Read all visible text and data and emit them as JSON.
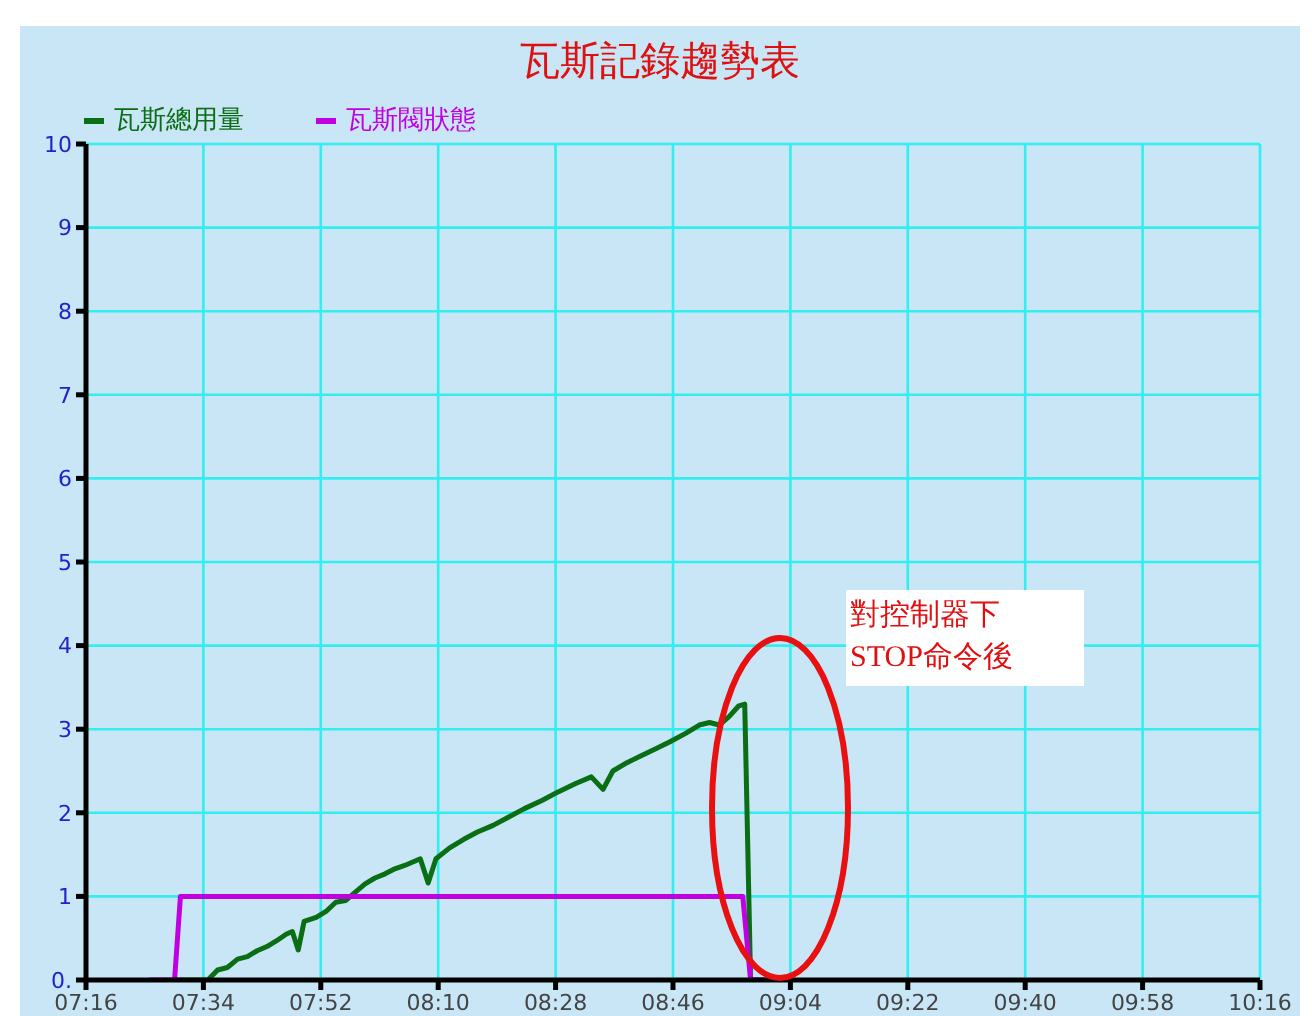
{
  "chart_data": {
    "type": "line",
    "title": "瓦斯記錄趨勢表",
    "series": [
      {
        "name": "瓦斯總用量",
        "color": "#0a6e14",
        "x": [
          7.498,
          7.578,
          7.603,
          7.628,
          7.654,
          7.679,
          7.704,
          7.729,
          7.754,
          7.779,
          7.794,
          7.809,
          7.824,
          7.855,
          7.88,
          7.905,
          7.93,
          7.955,
          7.98,
          8.005,
          8.031,
          8.056,
          8.081,
          8.121,
          8.141,
          8.161,
          8.196,
          8.231,
          8.267,
          8.307,
          8.347,
          8.387,
          8.433,
          8.473,
          8.518,
          8.558,
          8.588,
          8.613,
          8.649,
          8.684,
          8.724,
          8.759,
          8.799,
          8.834,
          8.86,
          8.885,
          8.91,
          8.935,
          8.95,
          8.965,
          9.0
        ],
        "values": [
          0,
          0,
          0.12,
          0.15,
          0.25,
          0.28,
          0.35,
          0.4,
          0.47,
          0.55,
          0.58,
          0.36,
          0.7,
          0.75,
          0.82,
          0.93,
          0.95,
          1.05,
          1.15,
          1.22,
          1.27,
          1.33,
          1.37,
          1.45,
          1.16,
          1.45,
          1.58,
          1.68,
          1.77,
          1.85,
          1.95,
          2.05,
          2.15,
          2.25,
          2.35,
          2.43,
          2.28,
          2.5,
          2.6,
          2.68,
          2.77,
          2.85,
          2.95,
          3.05,
          3.08,
          3.05,
          3.15,
          3.28,
          3.3,
          0,
          0
        ]
      },
      {
        "name": "瓦斯閥狀態",
        "color": "#c000e0",
        "x": [
          7.428,
          7.493,
          7.508,
          8.945,
          8.965,
          9.056
        ],
        "values": [
          0,
          0,
          1,
          1,
          0,
          0
        ]
      }
    ],
    "xlim": [
      7.2667,
      10.2667
    ],
    "xticks": [
      {
        "value": 7.2667,
        "label": "07:16"
      },
      {
        "value": 7.5667,
        "label": "07:34"
      },
      {
        "value": 7.8667,
        "label": "07:52"
      },
      {
        "value": 8.1667,
        "label": "08:10"
      },
      {
        "value": 8.4667,
        "label": "08:28"
      },
      {
        "value": 8.7667,
        "label": "08:46"
      },
      {
        "value": 9.0667,
        "label": "09:04"
      },
      {
        "value": 9.3667,
        "label": "09:22"
      },
      {
        "value": 9.6667,
        "label": "09:40"
      },
      {
        "value": 9.9667,
        "label": "09:58"
      },
      {
        "value": 10.2667,
        "label": "10:16"
      }
    ],
    "ylim": [
      0,
      10
    ],
    "yticks": [
      {
        "value": 0,
        "label": "0."
      },
      1,
      2,
      3,
      4,
      5,
      6,
      7,
      8,
      9,
      10
    ],
    "grid": true,
    "legend": "top left",
    "marker": "none",
    "line_style": "solid",
    "annotations": [
      "對控制器下\nSTOP命令後"
    ]
  }
}
